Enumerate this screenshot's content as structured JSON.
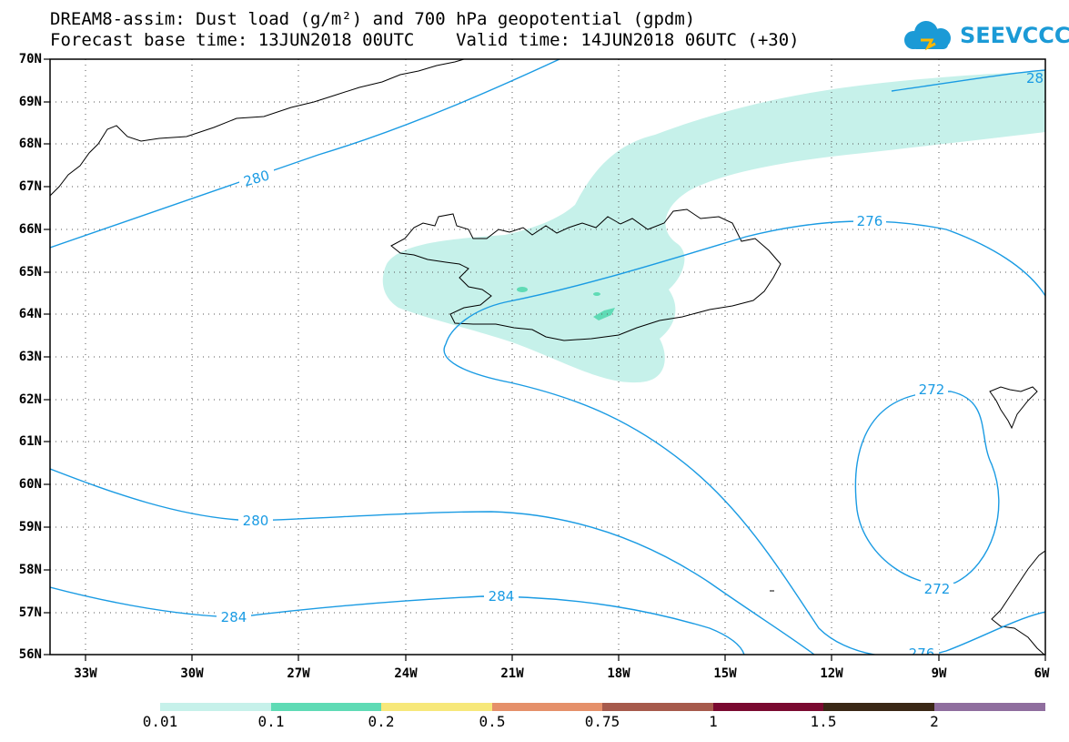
{
  "title": {
    "line1": "DREAM8-assim: Dust load (g/m²) and 700 hPa geopotential (gpdm)",
    "line2": "Forecast base time: 13JUN2018 00UTC    Valid time: 14JUN2018 06UTC (+30)"
  },
  "logo": {
    "text": "SEEVCCC",
    "icon": "cloud-icon",
    "color": "#1b9ad6"
  },
  "map": {
    "lat_labels": [
      "70N",
      "69N",
      "68N",
      "67N",
      "66N",
      "65N",
      "64N",
      "63N",
      "62N",
      "61N",
      "60N",
      "59N",
      "58N",
      "57N",
      "56N"
    ],
    "lon_labels": [
      "33W",
      "30W",
      "27W",
      "24W",
      "21W",
      "18W",
      "15W",
      "12W",
      "9W",
      "6W"
    ],
    "contour_color": "#1a9be3",
    "contour_labels": {
      "c280_top": "280",
      "c276_top": "276",
      "c28_edge": "28",
      "c272_top": "272",
      "c272_bottom": "272",
      "c280_mid": "280",
      "c284_left": "284",
      "c284_mid": "284",
      "c276_bottom": "276"
    },
    "dust_color": "#c6f1ea"
  },
  "colorbar": {
    "labels": [
      "0.01",
      "0.1",
      "0.2",
      "0.5",
      "0.75",
      "1",
      "1.5",
      "2"
    ],
    "colors": [
      "#c6f1ea",
      "#5fdbb5",
      "#f7e87a",
      "#e5906a",
      "#a65a4c",
      "#7a0a30",
      "#3a2715",
      "#8f6e9e"
    ]
  }
}
